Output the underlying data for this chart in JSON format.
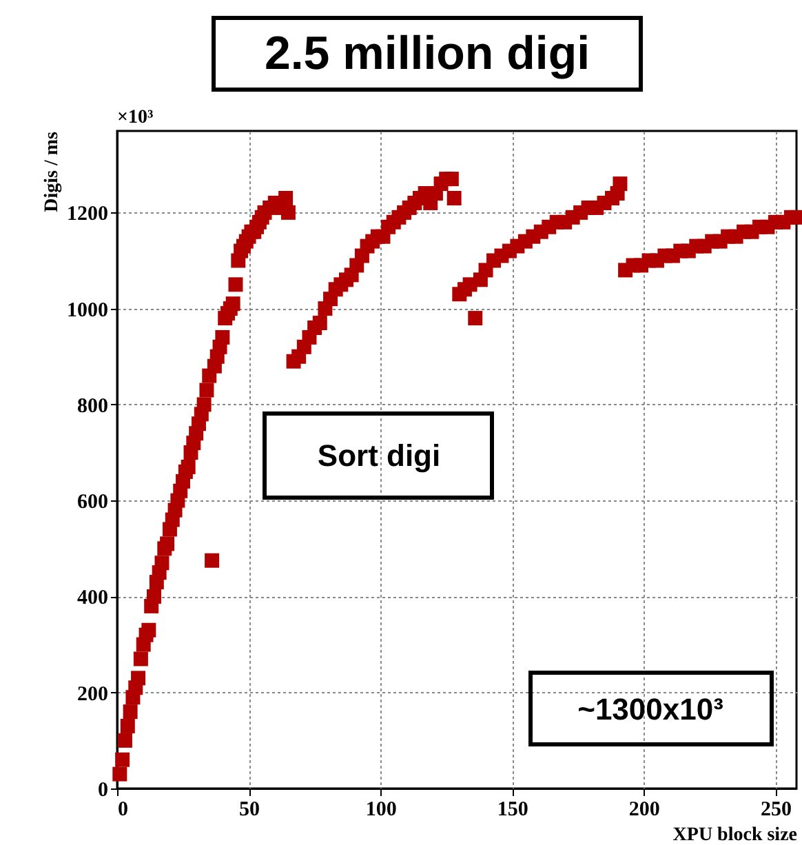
{
  "chart_data": {
    "type": "scatter",
    "title": "2.5 million digi",
    "xlabel": "XPU block size",
    "ylabel": "Digis / ms",
    "annotations": [
      "×10³",
      "Sort digi",
      "~1300x10³"
    ],
    "xlim": [
      0,
      258
    ],
    "xticks": [
      0,
      50,
      100,
      150,
      200,
      250
    ],
    "ylim": [
      0,
      1370
    ],
    "yticks": [
      0,
      200,
      400,
      600,
      800,
      1000,
      1200
    ],
    "grid": true,
    "marker": "square",
    "legend": false,
    "series": [
      {
        "color": "#b00000",
        "x": [
          1,
          2,
          3,
          4,
          5,
          6,
          7,
          8,
          9,
          10,
          11,
          12,
          13,
          14,
          15,
          16,
          17,
          18,
          19,
          20,
          21,
          22,
          23,
          24,
          25,
          26,
          27,
          28,
          29,
          30,
          31,
          32,
          33,
          34,
          35,
          36,
          37,
          38,
          39,
          40,
          41,
          42,
          43,
          44,
          45,
          46,
          47,
          48,
          49,
          50,
          51,
          52,
          53,
          54,
          55,
          56,
          58,
          60,
          63,
          64,
          65,
          67,
          69,
          71,
          73,
          75,
          77,
          79,
          81,
          83,
          85,
          87,
          89,
          91,
          93,
          95,
          97,
          99,
          101,
          103,
          105,
          107,
          109,
          111,
          113,
          115,
          117,
          119,
          121,
          123,
          125,
          127,
          128,
          130,
          132,
          134,
          136,
          138,
          140,
          143,
          146,
          149,
          152,
          155,
          158,
          161,
          164,
          167,
          170,
          173,
          176,
          179,
          182,
          185,
          188,
          190,
          191,
          193,
          196,
          199,
          202,
          205,
          208,
          211,
          214,
          217,
          220,
          223,
          226,
          229,
          232,
          235,
          238,
          241,
          244,
          247,
          250,
          253,
          256,
          258
        ],
        "values": [
          30,
          60,
          100,
          130,
          160,
          190,
          210,
          230,
          270,
          300,
          320,
          330,
          380,
          400,
          430,
          450,
          470,
          500,
          510,
          540,
          560,
          580,
          600,
          620,
          640,
          660,
          670,
          700,
          720,
          740,
          760,
          780,
          800,
          830,
          860,
          475,
          880,
          900,
          920,
          940,
          980,
          990,
          1000,
          1010,
          1050,
          1100,
          1120,
          1130,
          1140,
          1150,
          1160,
          1160,
          1170,
          1180,
          1190,
          1200,
          1210,
          1220,
          1210,
          1230,
          1200,
          890,
          900,
          920,
          940,
          960,
          970,
          1000,
          1020,
          1040,
          1050,
          1060,
          1070,
          1090,
          1110,
          1130,
          1140,
          1150,
          1150,
          1170,
          1180,
          1190,
          1200,
          1210,
          1220,
          1230,
          1240,
          1220,
          1240,
          1260,
          1270,
          1270,
          1230,
          1030,
          1040,
          1050,
          980,
          1060,
          1080,
          1100,
          1110,
          1120,
          1130,
          1140,
          1150,
          1160,
          1170,
          1180,
          1180,
          1190,
          1200,
          1210,
          1210,
          1220,
          1230,
          1240,
          1260,
          1080,
          1090,
          1090,
          1100,
          1100,
          1110,
          1110,
          1120,
          1120,
          1130,
          1130,
          1140,
          1140,
          1150,
          1150,
          1160,
          1160,
          1170,
          1170,
          1180,
          1180,
          1190,
          1190
        ]
      }
    ]
  }
}
